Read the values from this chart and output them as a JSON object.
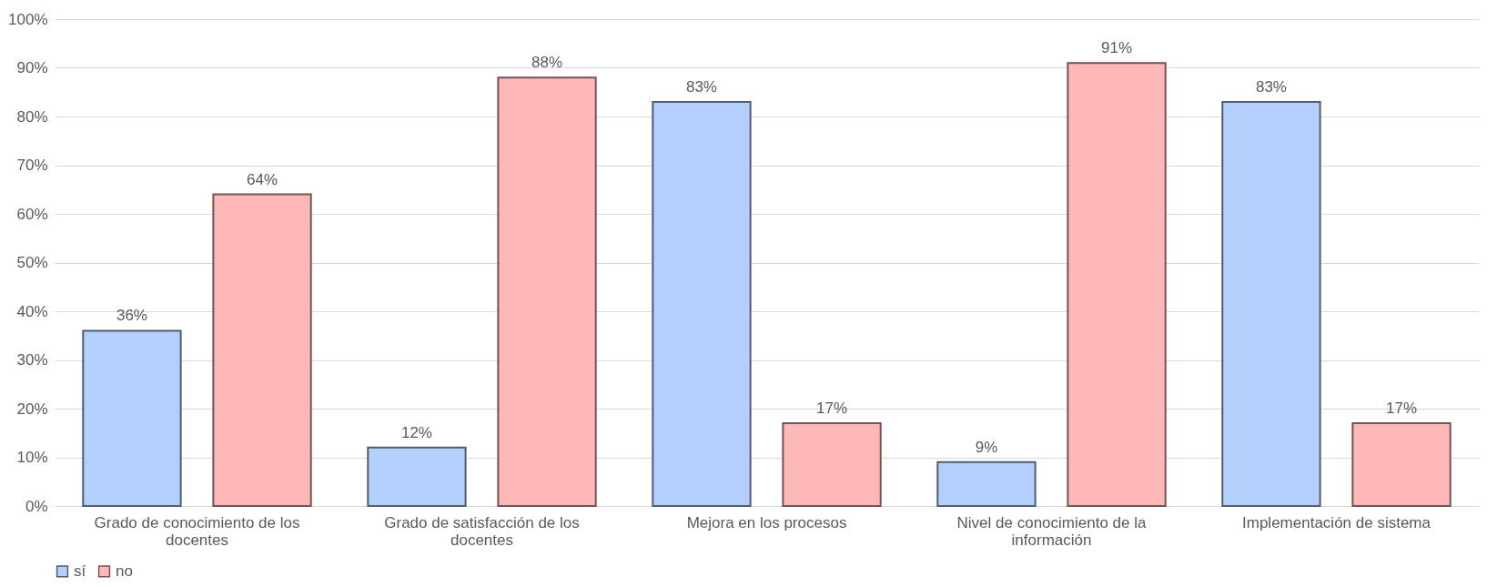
{
  "chart_data": {
    "type": "bar",
    "categories": [
      "Grado de conocimiento de los docentes",
      "Grado de satisfacción de los docentes",
      "Mejora en los procesos",
      "Nivel de conocimiento de la información",
      "Implementación de sistema"
    ],
    "series": [
      {
        "name": "sí",
        "color": "#b4cffc",
        "values": [
          36,
          12,
          83,
          9,
          83
        ],
        "value_labels": [
          "36%",
          "12%",
          "83%",
          "9%",
          "83%"
        ]
      },
      {
        "name": "no",
        "color": "#ffb8b8",
        "values": [
          64,
          88,
          17,
          91,
          17
        ],
        "value_labels": [
          "64%",
          "88%",
          "17%",
          "91%",
          "17%"
        ]
      }
    ],
    "ylim": [
      0,
      100
    ],
    "yticks": [
      {
        "value": 0,
        "label": "0%"
      },
      {
        "value": 10,
        "label": "10%"
      },
      {
        "value": 20,
        "label": "20%"
      },
      {
        "value": 30,
        "label": "30%"
      },
      {
        "value": 40,
        "label": "40%"
      },
      {
        "value": 50,
        "label": "50%"
      },
      {
        "value": 60,
        "label": "60%"
      },
      {
        "value": 70,
        "label": "70%"
      },
      {
        "value": 80,
        "label": "80%"
      },
      {
        "value": 90,
        "label": "90%"
      },
      {
        "value": 100,
        "label": "100%"
      }
    ],
    "grid": "y",
    "legend": "bottom"
  }
}
